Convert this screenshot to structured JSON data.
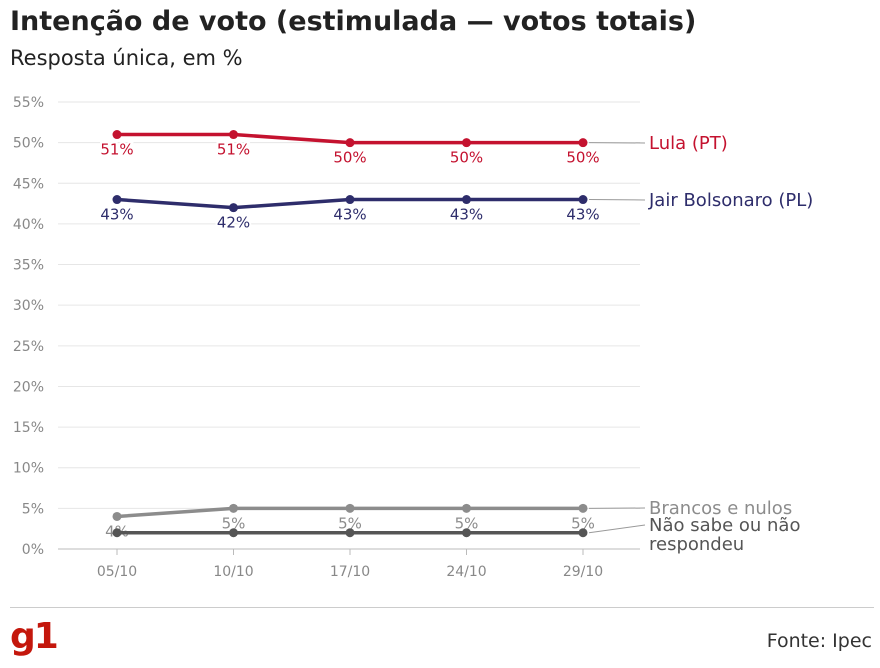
{
  "title": "Intenção de voto (estimulada — votos totais)",
  "subtitle": "Resposta única, em %",
  "source": "Fonte: Ipec",
  "logo": "g1",
  "chart_data": {
    "type": "line",
    "x": [
      "05/10",
      "10/10",
      "17/10",
      "24/10",
      "29/10"
    ],
    "ylim": [
      0,
      55
    ],
    "yticks": [
      "0%",
      "5%",
      "10%",
      "15%",
      "20%",
      "25%",
      "30%",
      "35%",
      "40%",
      "45%",
      "50%",
      "55%"
    ],
    "grid": true,
    "legend": "right-end labels",
    "series": [
      {
        "name": "Lula (PT)",
        "color": "#c4122f",
        "values": [
          51,
          51,
          50,
          50,
          50
        ],
        "labels": [
          "51%",
          "51%",
          "50%",
          "50%",
          "50%"
        ],
        "label_pos": "below"
      },
      {
        "name": "Jair Bolsonaro (PL)",
        "color": "#2e2d6b",
        "values": [
          43,
          42,
          43,
          43,
          43
        ],
        "labels": [
          "43%",
          "42%",
          "43%",
          "43%",
          "43%"
        ],
        "label_pos": "below"
      },
      {
        "name": "Brancos e nulos",
        "color": "#8c8c8c",
        "values": [
          4,
          5,
          5,
          5,
          5
        ],
        "labels": [
          "4%",
          "5%",
          "5%",
          "5%",
          "5%"
        ],
        "label_pos": "mixed"
      },
      {
        "name_lines": [
          "Não sabe ou não",
          "respondeu"
        ],
        "color": "#555555",
        "values": [
          2,
          2,
          2,
          2,
          2
        ]
      }
    ]
  }
}
